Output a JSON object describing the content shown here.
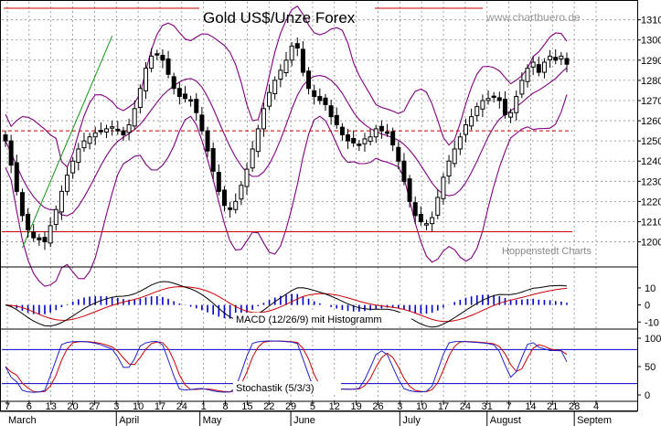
{
  "chart_data": [
    {
      "type": "candlestick",
      "title": "Gold US$/Unze Forex",
      "watermark": "www.chartbuero.de",
      "credit": "Hoppenstedt Charts",
      "ylim": [
        1193,
        1318
      ],
      "yticks": [
        1200,
        1210,
        1220,
        1230,
        1240,
        1250,
        1260,
        1270,
        1280,
        1290,
        1300,
        1310
      ],
      "x_date_labels": [
        "7",
        "6",
        "13",
        "20",
        "27",
        "3",
        "10",
        "17",
        "24",
        "1",
        "8",
        "15",
        "22",
        "29",
        "5",
        "12",
        "19",
        "26",
        "3",
        "10",
        "17",
        "24",
        "31",
        "7",
        "14",
        "21",
        "28",
        "4"
      ],
      "month_labels": [
        "March",
        "April",
        "May",
        "June",
        "July",
        "August",
        "Septem"
      ],
      "reference_lines": [
        {
          "value": 1255,
          "style": "dashed",
          "color": "#cc0000"
        },
        {
          "value": 1205,
          "style": "solid",
          "color": "#cc0000"
        }
      ],
      "trendline": {
        "from": {
          "period": 3,
          "value": 1197
        },
        "to": {
          "period": 19,
          "value": 1302
        },
        "color": "#119911"
      },
      "close_series": [
        1250,
        1238,
        1225,
        1213,
        1206,
        1202,
        1201,
        1200,
        1208,
        1216,
        1225,
        1233,
        1240,
        1246,
        1250,
        1252,
        1254,
        1255,
        1256,
        1257,
        1255,
        1253,
        1258,
        1266,
        1276,
        1286,
        1292,
        1293,
        1290,
        1283,
        1276,
        1272,
        1271,
        1270,
        1264,
        1255,
        1245,
        1235,
        1225,
        1218,
        1216,
        1220,
        1228,
        1236,
        1246,
        1256,
        1266,
        1274,
        1280,
        1285,
        1290,
        1297,
        1296,
        1284,
        1276,
        1272,
        1270,
        1268,
        1262,
        1258,
        1253,
        1250,
        1249,
        1248,
        1251,
        1252,
        1256,
        1255,
        1254,
        1248,
        1240,
        1230,
        1220,
        1213,
        1210,
        1209,
        1212,
        1222,
        1232,
        1240,
        1246,
        1252,
        1258,
        1262,
        1267,
        1270,
        1271,
        1272,
        1270,
        1263,
        1264,
        1272,
        1280,
        1286,
        1289,
        1284,
        1289,
        1292,
        1290,
        1292,
        1288
      ],
      "indicators": {
        "macd_label": "MACD (12/26/9) mit Histogramm",
        "macd_ylim": [
          -12,
          18
        ],
        "macd_ticks": [
          10,
          0,
          -10
        ],
        "stoch_label": "Stochastik (5/3/3)",
        "stoch_ylim": [
          -8,
          108
        ],
        "stoch_ticks": [
          100,
          50,
          0
        ],
        "stoch_lines": [
          80,
          20
        ]
      },
      "colors": {
        "candle": "#000000",
        "bollinger": "#800080",
        "reference": "#cc0000",
        "trend": "#119911",
        "macd": "#000000",
        "signal": "#cc0000",
        "histogram": "#0000cc",
        "stoch_k": "#2222cc",
        "stoch_d": "#cc0000",
        "stoch_level": "#0000cc"
      }
    }
  ]
}
